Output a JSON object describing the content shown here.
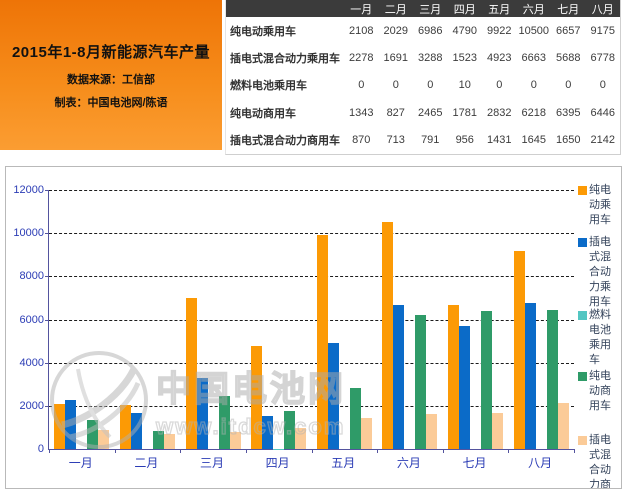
{
  "header": {
    "title": "2015年1-8月新能源汽车产量",
    "source": "数据来源：工信部",
    "credit": "制表：中国电池网/陈语"
  },
  "table": {
    "columns": [
      "一月",
      "二月",
      "三月",
      "四月",
      "五月",
      "六月",
      "七月",
      "八月"
    ],
    "rows": [
      {
        "label": "纯电动乘用车",
        "values": [
          2108,
          2029,
          6986,
          4790,
          9922,
          10500,
          6657,
          9175
        ]
      },
      {
        "label": "插电式混合动力乘用车",
        "values": [
          2278,
          1691,
          3288,
          1523,
          4923,
          6663,
          5688,
          6778
        ]
      },
      {
        "label": "燃料电池乘用车",
        "values": [
          0,
          0,
          0,
          10,
          0,
          0,
          0,
          0
        ]
      },
      {
        "label": "纯电动商用车",
        "values": [
          1343,
          827,
          2465,
          1781,
          2832,
          6218,
          6395,
          6446
        ]
      },
      {
        "label": "插电式混合动力商用车",
        "values": [
          870,
          713,
          791,
          956,
          1431,
          1645,
          1650,
          2142
        ]
      }
    ]
  },
  "chart_data": {
    "type": "bar",
    "title": "",
    "categories": [
      "一月",
      "二月",
      "三月",
      "四月",
      "五月",
      "六月",
      "七月",
      "八月"
    ],
    "series": [
      {
        "name": "纯电动乘用车",
        "color": "#FC9A05",
        "values": [
          2108,
          2029,
          6986,
          4790,
          9922,
          10500,
          6657,
          9175
        ]
      },
      {
        "name": "插电式混合动力乘用车",
        "color": "#0B6BC8",
        "values": [
          2278,
          1691,
          3288,
          1523,
          4923,
          6663,
          5688,
          6778
        ]
      },
      {
        "name": "燃料电池乘用车",
        "color": "#53C6C2",
        "values": [
          0,
          0,
          0,
          10,
          0,
          0,
          0,
          0
        ]
      },
      {
        "name": "纯电动商用车",
        "color": "#2F9B68",
        "values": [
          1343,
          827,
          2465,
          1781,
          2832,
          6218,
          6395,
          6446
        ]
      },
      {
        "name": "插电式混合动力商用车",
        "color": "#FBCB98",
        "values": [
          870,
          713,
          791,
          956,
          1431,
          1645,
          1650,
          2142
        ]
      }
    ],
    "xlabel": "",
    "ylabel": "",
    "ylim": [
      0,
      12000
    ],
    "ytick_step": 2000,
    "grid": "horizontal-dashed",
    "legend_position": "right"
  },
  "watermark": {
    "name": "中国电池网",
    "url": "www.itdcw.com"
  },
  "colors": {
    "axis": "#53539e",
    "tick_label": "#2b3cb5",
    "table_header_bg": "#3b3b3b"
  }
}
